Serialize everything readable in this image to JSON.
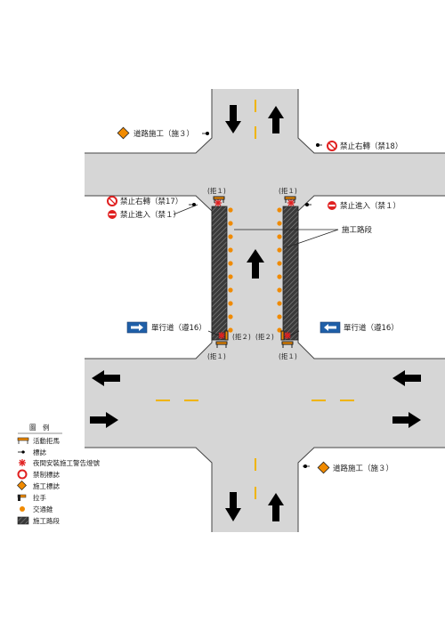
{
  "colors": {
    "road": "#d6d6d6",
    "road_edge": "#444444",
    "center_line": "#f0b400",
    "work_zone": "#3a3a3a",
    "cone": "#f08a00",
    "prohibit": "#e02020",
    "warning": "#f08a00",
    "oneway_sign": "#1f5fa8"
  },
  "signs": {
    "road_work_top": "道路施工（施３）",
    "no_right_turn_top": "禁止右轉（禁18）",
    "no_right_turn_left": "禁止右轉（禁17）",
    "no_entry_left": "禁止進入（禁１）",
    "no_entry_right": "禁止進入（禁１）",
    "construction_section": "施工路段",
    "one_way_left": "單行道（遵16）",
    "one_way_right": "單行道（遵16）",
    "road_work_bottom": "道路施工（施３）"
  },
  "barriers": {
    "top_left": "(拒１)",
    "top_right": "(拒１)",
    "bottom_left": "(拒１)",
    "bottom_right": "(拒１)",
    "mid_left": "(拒２)",
    "mid_right": "(拒２)"
  },
  "legend": {
    "title": "圖　例",
    "items": [
      {
        "icon": "barricade-icon",
        "label": "活動拒馬"
      },
      {
        "icon": "sign-post-icon",
        "label": "標誌"
      },
      {
        "icon": "warning-light-icon",
        "label": "夜間安裝施工警告燈號"
      },
      {
        "icon": "prohibit-sign-icon",
        "label": "禁制標誌"
      },
      {
        "icon": "warning-sign-icon",
        "label": "施工標誌"
      },
      {
        "icon": "handrail-icon",
        "label": "拉手"
      },
      {
        "icon": "traffic-cone-icon",
        "label": "交通錐"
      },
      {
        "icon": "work-zone-icon",
        "label": "施工路段"
      }
    ]
  }
}
